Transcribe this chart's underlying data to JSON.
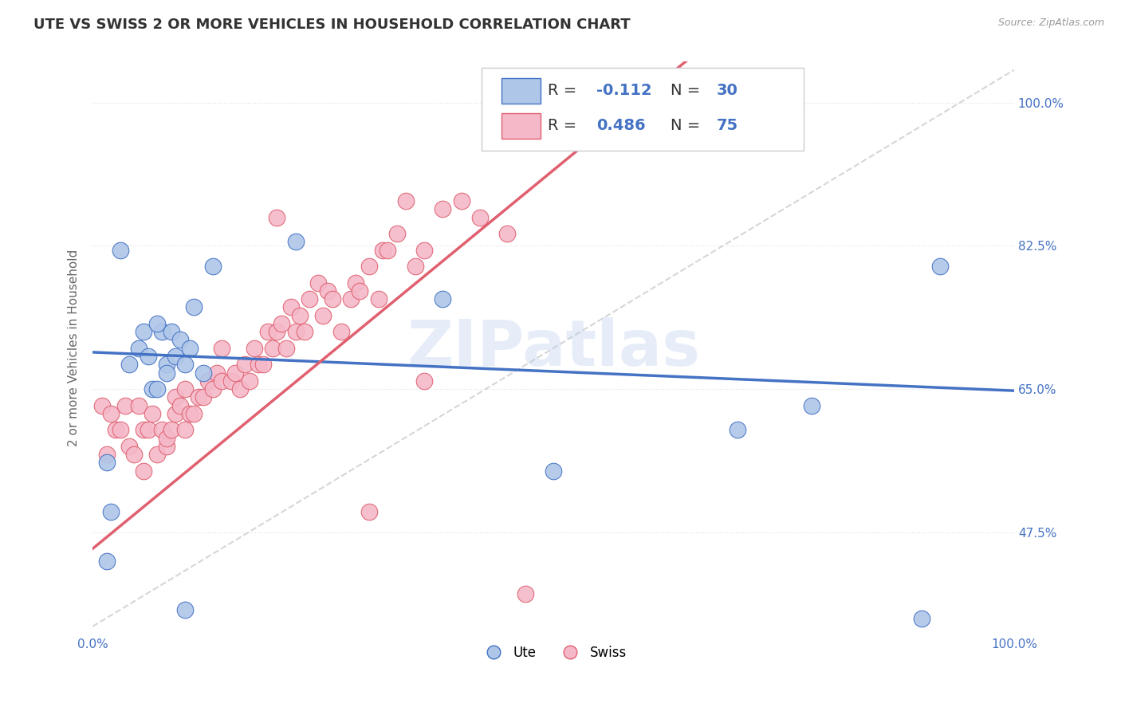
{
  "title": "UTE VS SWISS 2 OR MORE VEHICLES IN HOUSEHOLD CORRELATION CHART",
  "source": "Source: ZipAtlas.com",
  "xlabel": "",
  "ylabel": "2 or more Vehicles in Household",
  "xmin": 0.0,
  "xmax": 1.0,
  "ymin": 0.35,
  "ymax": 1.05,
  "xtick_labels": [
    "0.0%",
    "100.0%"
  ],
  "ytick_labels": [
    "47.5%",
    "65.0%",
    "82.5%",
    "100.0%"
  ],
  "ytick_values": [
    0.475,
    0.65,
    0.825,
    1.0
  ],
  "ute_color": "#aec6e8",
  "swiss_color": "#f4b8c8",
  "ute_line_color": "#4472c4",
  "swiss_line_color": "#e06070",
  "ute_R": -0.112,
  "ute_N": 30,
  "swiss_R": 0.486,
  "swiss_N": 75,
  "legend_label1": "Ute",
  "legend_label2": "Swiss",
  "watermark": "ZIPatlas",
  "ute_x": [
    0.015,
    0.02,
    0.04,
    0.05,
    0.055,
    0.06,
    0.065,
    0.07,
    0.075,
    0.08,
    0.085,
    0.09,
    0.095,
    0.1,
    0.105,
    0.11,
    0.12,
    0.13,
    0.22,
    0.38,
    0.5,
    0.7,
    0.78,
    0.9,
    0.92,
    0.015,
    0.03,
    0.07,
    0.08,
    0.1
  ],
  "ute_y": [
    0.56,
    0.5,
    0.68,
    0.7,
    0.72,
    0.69,
    0.65,
    0.65,
    0.72,
    0.68,
    0.72,
    0.69,
    0.71,
    0.68,
    0.7,
    0.75,
    0.67,
    0.8,
    0.83,
    0.76,
    0.55,
    0.6,
    0.63,
    0.37,
    0.8,
    0.44,
    0.82,
    0.73,
    0.67,
    0.38
  ],
  "swiss_x": [
    0.01,
    0.015,
    0.02,
    0.025,
    0.03,
    0.035,
    0.04,
    0.045,
    0.05,
    0.055,
    0.055,
    0.06,
    0.065,
    0.07,
    0.075,
    0.08,
    0.08,
    0.085,
    0.09,
    0.09,
    0.095,
    0.1,
    0.1,
    0.105,
    0.11,
    0.115,
    0.12,
    0.125,
    0.13,
    0.135,
    0.14,
    0.14,
    0.15,
    0.155,
    0.16,
    0.165,
    0.17,
    0.175,
    0.18,
    0.185,
    0.19,
    0.195,
    0.2,
    0.205,
    0.21,
    0.215,
    0.22,
    0.225,
    0.23,
    0.235,
    0.245,
    0.25,
    0.255,
    0.26,
    0.27,
    0.28,
    0.285,
    0.29,
    0.3,
    0.31,
    0.315,
    0.32,
    0.33,
    0.34,
    0.35,
    0.36,
    0.38,
    0.4,
    0.42,
    0.45,
    0.47,
    0.5,
    0.2,
    0.3,
    0.36
  ],
  "swiss_y": [
    0.63,
    0.57,
    0.62,
    0.6,
    0.6,
    0.63,
    0.58,
    0.57,
    0.63,
    0.55,
    0.6,
    0.6,
    0.62,
    0.57,
    0.6,
    0.58,
    0.59,
    0.6,
    0.62,
    0.64,
    0.63,
    0.6,
    0.65,
    0.62,
    0.62,
    0.64,
    0.64,
    0.66,
    0.65,
    0.67,
    0.66,
    0.7,
    0.66,
    0.67,
    0.65,
    0.68,
    0.66,
    0.7,
    0.68,
    0.68,
    0.72,
    0.7,
    0.72,
    0.73,
    0.7,
    0.75,
    0.72,
    0.74,
    0.72,
    0.76,
    0.78,
    0.74,
    0.77,
    0.76,
    0.72,
    0.76,
    0.78,
    0.77,
    0.8,
    0.76,
    0.82,
    0.82,
    0.84,
    0.88,
    0.8,
    0.82,
    0.87,
    0.88,
    0.86,
    0.84,
    0.4,
    0.97,
    0.86,
    0.5,
    0.66
  ],
  "title_fontsize": 13,
  "axis_label_fontsize": 11,
  "tick_fontsize": 11,
  "legend_fontsize": 14
}
